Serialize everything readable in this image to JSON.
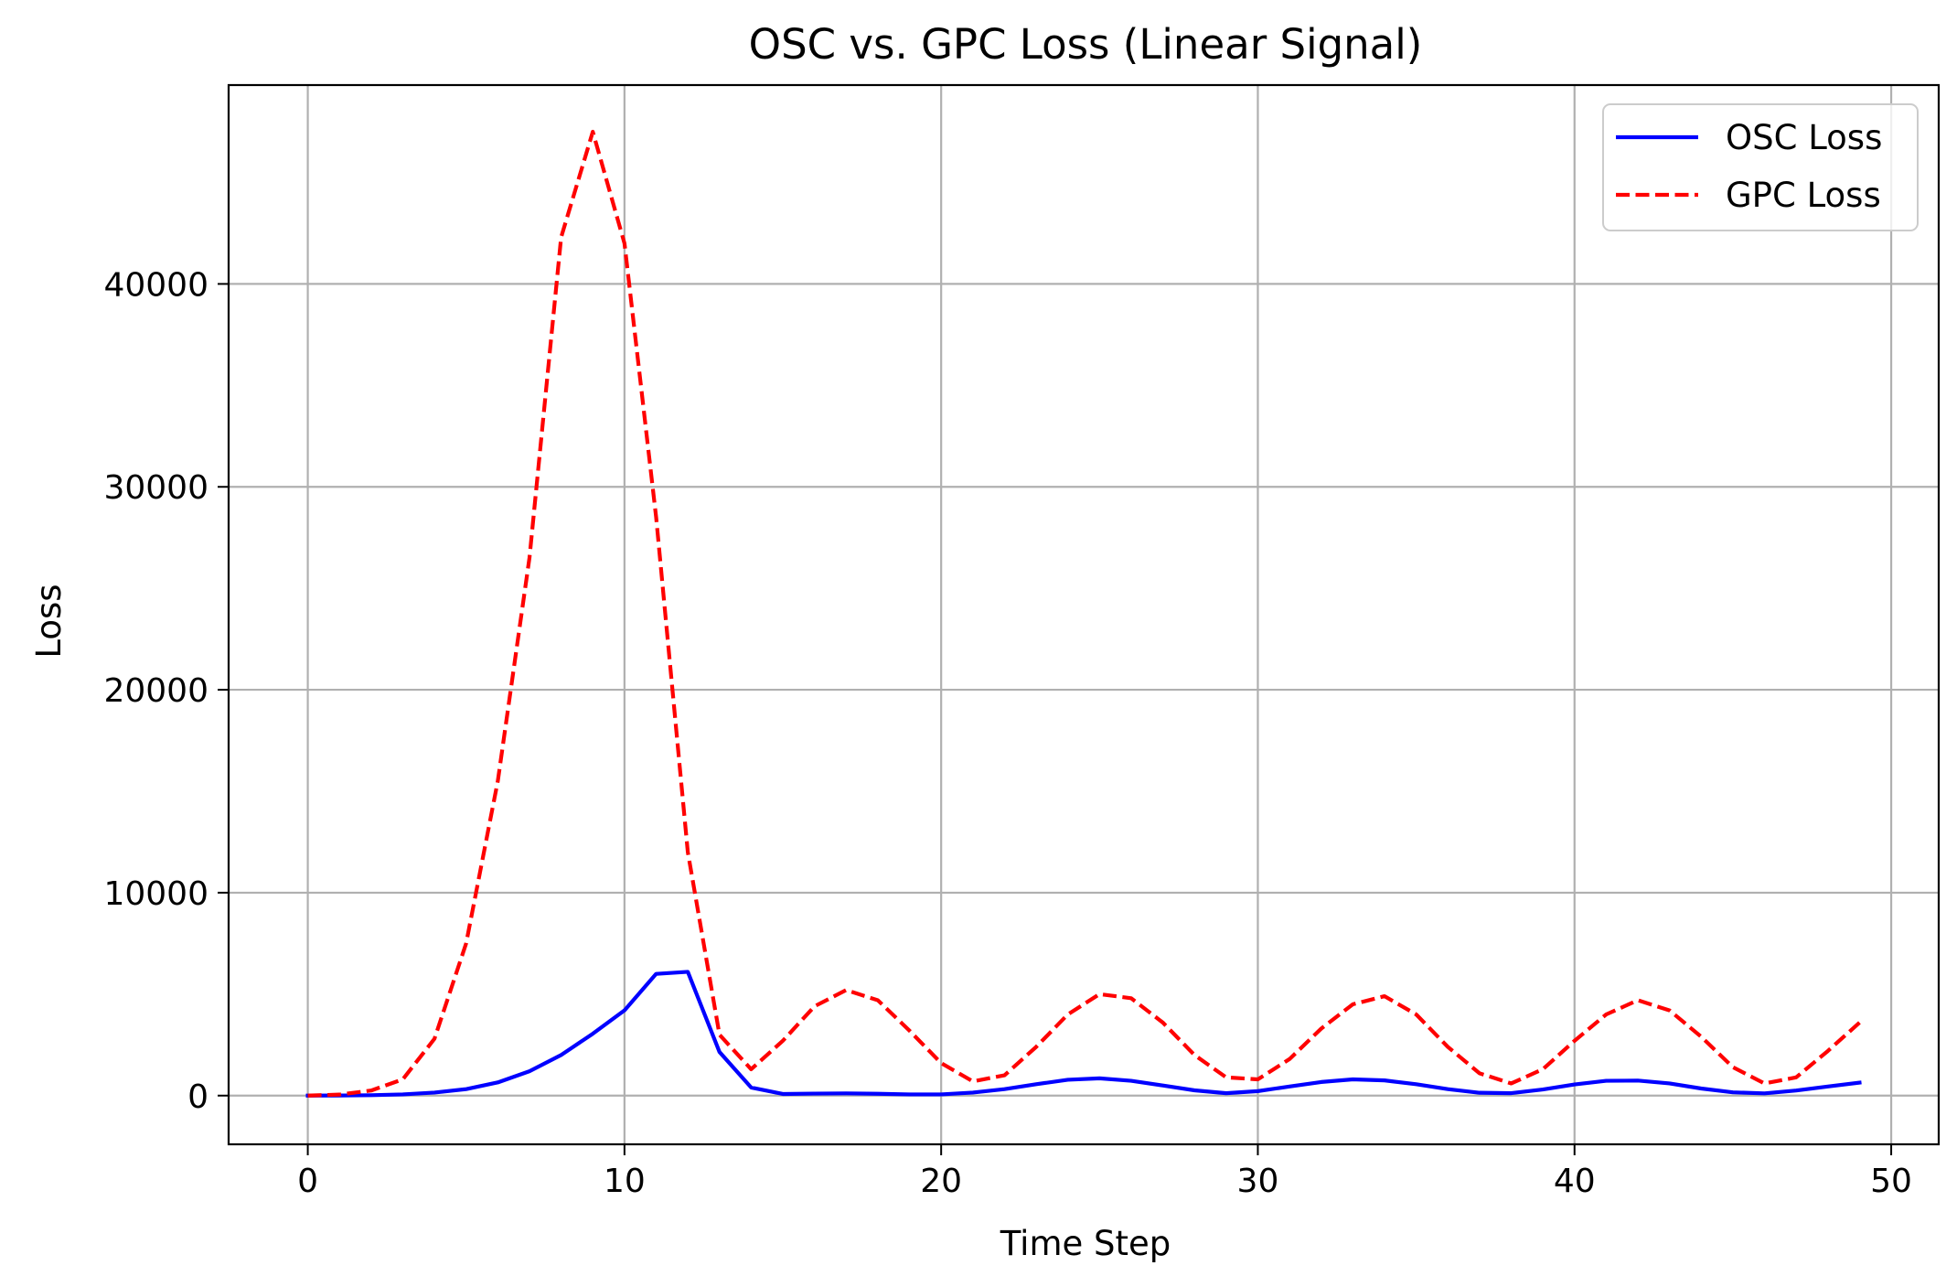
{
  "chart_data": {
    "type": "line",
    "title": "OSC vs. GPC Loss (Linear Signal)",
    "xlabel": "Time Step",
    "ylabel": "Loss",
    "xlim": [
      -2.5,
      51.5
    ],
    "ylim": [
      -2400,
      49800
    ],
    "xticks": [
      0,
      10,
      20,
      30,
      40,
      50
    ],
    "yticks": [
      0,
      10000,
      20000,
      30000,
      40000
    ],
    "grid": true,
    "legend_position": "top-right",
    "x": [
      0,
      1,
      2,
      3,
      4,
      5,
      6,
      7,
      8,
      9,
      10,
      11,
      12,
      13,
      14,
      15,
      16,
      17,
      18,
      19,
      20,
      21,
      22,
      23,
      24,
      25,
      26,
      27,
      28,
      29,
      30,
      31,
      32,
      33,
      34,
      35,
      36,
      37,
      38,
      39,
      40,
      41,
      42,
      43,
      44,
      45,
      46,
      47,
      48,
      49
    ],
    "series": [
      {
        "name": "OSC Loss",
        "color": "#0000ff",
        "linestyle": "solid",
        "values": [
          0,
          5,
          20,
          60,
          150,
          320,
          650,
          1200,
          2000,
          3050,
          4200,
          6000,
          6100,
          2150,
          400,
          80,
          100,
          110,
          90,
          60,
          60,
          150,
          320,
          560,
          780,
          850,
          730,
          500,
          260,
          120,
          220,
          450,
          670,
          800,
          750,
          560,
          320,
          140,
          120,
          300,
          550,
          730,
          740,
          600,
          350,
          160,
          110,
          250,
          450,
          640
        ]
      },
      {
        "name": "GPC Loss",
        "color": "#ff0000",
        "linestyle": "dashed",
        "values": [
          0,
          50,
          250,
          800,
          2800,
          7500,
          15500,
          26500,
          42300,
          47500,
          42000,
          28500,
          12000,
          3000,
          1300,
          2700,
          4400,
          5200,
          4700,
          3200,
          1600,
          700,
          1000,
          2400,
          4000,
          5000,
          4800,
          3600,
          2000,
          900,
          800,
          1800,
          3300,
          4500,
          4900,
          4000,
          2400,
          1100,
          600,
          1300,
          2700,
          4000,
          4700,
          4200,
          2900,
          1400,
          600,
          900,
          2200,
          3600
        ]
      }
    ]
  }
}
